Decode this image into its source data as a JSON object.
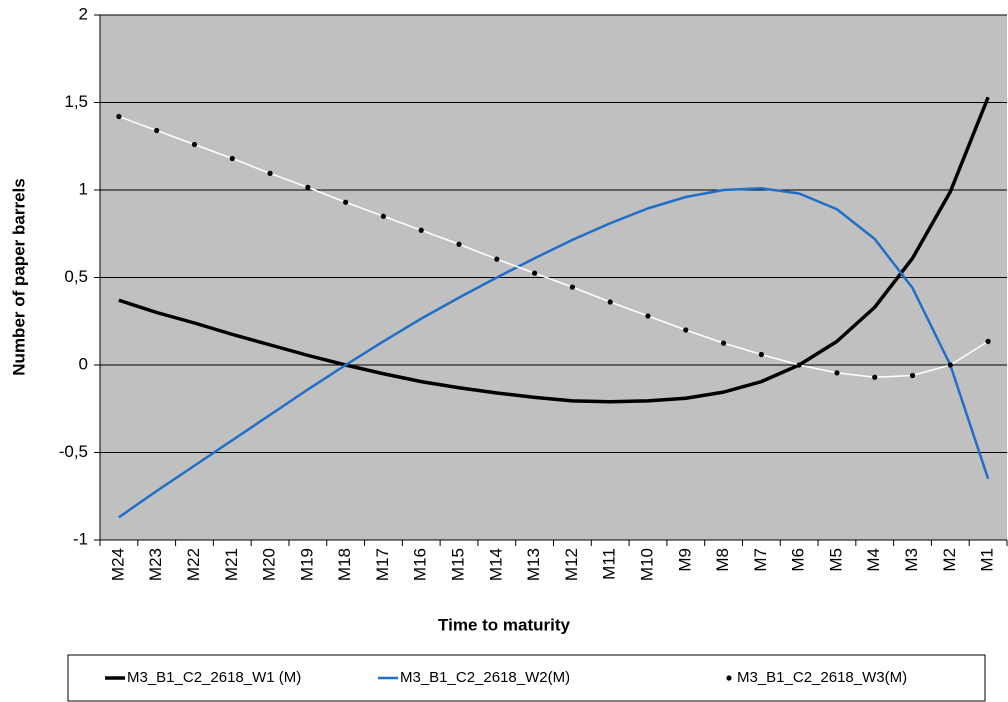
{
  "chart_data": {
    "type": "line",
    "y_label": "Number of paper barrels",
    "x_label": "Time to maturity",
    "categories": [
      "M24",
      "M23",
      "M22",
      "M21",
      "M20",
      "M19",
      "M18",
      "M17",
      "M16",
      "M15",
      "M14",
      "M13",
      "M12",
      "M11",
      "M10",
      "M9",
      "M8",
      "M7",
      "M6",
      "M5",
      "M4",
      "M3",
      "M2",
      "M1"
    ],
    "series": [
      {
        "name": "M3_B1_C2_2618_W1 (M)",
        "color": "#000000",
        "marker": "none",
        "values": [
          0.37,
          0.3,
          0.24,
          0.175,
          0.115,
          0.055,
          0.0,
          -0.05,
          -0.095,
          -0.13,
          -0.16,
          -0.185,
          -0.205,
          -0.21,
          -0.205,
          -0.19,
          -0.155,
          -0.095,
          0.0,
          0.135,
          0.33,
          0.61,
          0.99,
          1.53
        ]
      },
      {
        "name": "M3_B1_C2_2618_W2(M)",
        "color": "#1f6fc8",
        "marker": "none",
        "values": [
          -0.87,
          -0.72,
          -0.575,
          -0.43,
          -0.285,
          -0.14,
          0.0,
          0.135,
          0.265,
          0.385,
          0.5,
          0.61,
          0.715,
          0.81,
          0.895,
          0.96,
          1.0,
          1.01,
          0.98,
          0.89,
          0.72,
          0.44,
          0.0,
          -0.65
        ]
      },
      {
        "name": "M3_B1_C2_2618_W3(M)",
        "color": "#000000",
        "line_color": "#ffffff",
        "marker": "dot",
        "values": [
          1.42,
          1.34,
          1.26,
          1.18,
          1.095,
          1.015,
          0.93,
          0.85,
          0.77,
          0.69,
          0.605,
          0.525,
          0.445,
          0.36,
          0.28,
          0.2,
          0.125,
          0.06,
          0.0,
          -0.045,
          -0.07,
          -0.06,
          0.0,
          0.135
        ]
      }
    ],
    "ylim": [
      -1,
      2
    ],
    "yticks": [
      -1,
      {
        "value": -0.5,
        "label": "-0,5"
      },
      0,
      {
        "value": 0.5,
        "label": "0,5"
      },
      1,
      {
        "value": 1.5,
        "label": "1,5"
      },
      2
    ],
    "grid": true,
    "plot_background": "#c0c0c0",
    "legend": "bottom"
  }
}
